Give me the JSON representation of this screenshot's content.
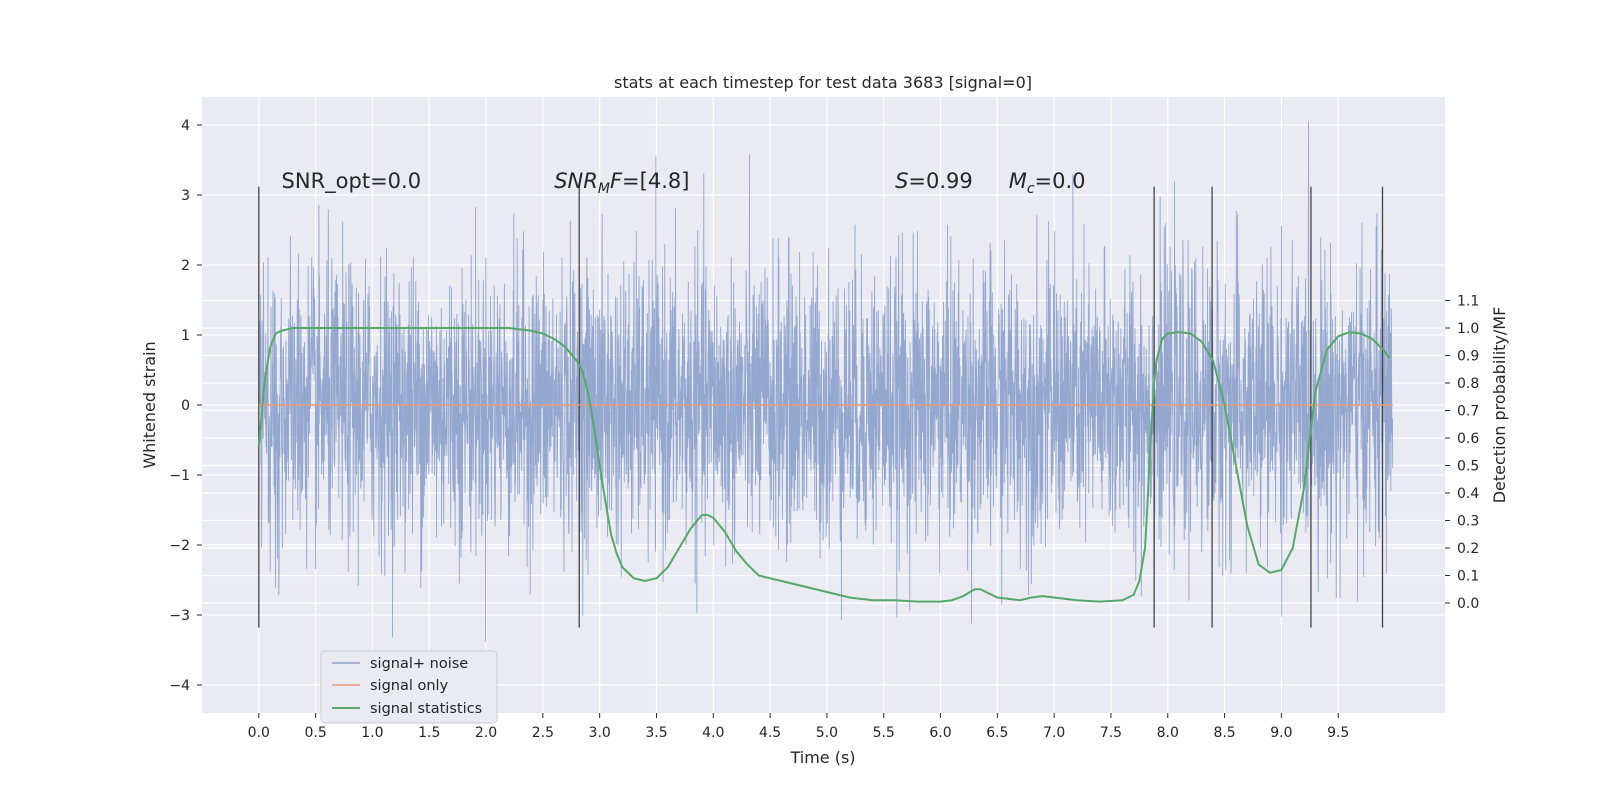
{
  "chart_data": {
    "type": "line",
    "title": "stats at each timestep for test data 3683 [signal=0]",
    "xlabel": "Time (s)",
    "ylabel": "Whitened strain",
    "ylabel_right": "Detection probability/MF",
    "xlim": [
      -0.5,
      10.44
    ],
    "ylim": [
      -4.4,
      4.4
    ],
    "ylim_right": [
      -0.4,
      1.84
    ],
    "x_ticks": [
      "0.0",
      "0.5",
      "1.0",
      "1.5",
      "2.0",
      "2.5",
      "3.0",
      "3.5",
      "4.0",
      "4.5",
      "5.0",
      "5.5",
      "6.0",
      "6.5",
      "7.0",
      "7.5",
      "8.0",
      "8.5",
      "9.0",
      "9.5"
    ],
    "y_ticks": [
      "4",
      "3",
      "2",
      "1",
      "0",
      "−1",
      "−2",
      "−3",
      "−4"
    ],
    "y_ticks_right": [
      "0.0",
      "0.1",
      "0.2",
      "0.3",
      "0.4",
      "0.5",
      "0.6",
      "0.7",
      "0.8",
      "0.9",
      "1.0",
      "1.1"
    ],
    "grid": true,
    "legend_position": "lower-left",
    "series": [
      {
        "name": "signal+ noise",
        "color": "#8fa3cc",
        "axis": "left",
        "x_range": [
          0.0,
          9.98
        ],
        "description": "dense whitened strain noise, mostly within ±2, peaks near ±4"
      },
      {
        "name": "signal only",
        "color": "#e9997a",
        "axis": "left",
        "x": [
          0.0,
          9.98
        ],
        "y": [
          0.0,
          0.0
        ]
      },
      {
        "name": "signal statistics",
        "color": "#55a868",
        "axis": "right",
        "x": [
          0.0,
          0.05,
          0.1,
          0.15,
          0.2,
          0.3,
          0.5,
          1.0,
          1.5,
          2.0,
          2.2,
          2.4,
          2.5,
          2.6,
          2.7,
          2.8,
          2.85,
          2.9,
          2.95,
          3.0,
          3.05,
          3.1,
          3.15,
          3.2,
          3.3,
          3.4,
          3.5,
          3.6,
          3.7,
          3.8,
          3.9,
          3.95,
          4.0,
          4.1,
          4.2,
          4.3,
          4.4,
          4.6,
          4.8,
          5.0,
          5.2,
          5.4,
          5.6,
          5.8,
          6.0,
          6.1,
          6.2,
          6.3,
          6.35,
          6.4,
          6.5,
          6.6,
          6.7,
          6.8,
          6.9,
          7.0,
          7.2,
          7.4,
          7.6,
          7.7,
          7.75,
          7.8,
          7.82,
          7.85,
          7.88,
          7.9,
          7.95,
          8.0,
          8.1,
          8.2,
          8.3,
          8.4,
          8.5,
          8.6,
          8.7,
          8.8,
          8.9,
          9.0,
          9.1,
          9.2,
          9.25,
          9.3,
          9.4,
          9.5,
          9.6,
          9.7,
          9.8,
          9.9,
          9.95
        ],
        "y": [
          0.57,
          0.8,
          0.93,
          0.98,
          0.99,
          1.0,
          1.0,
          1.0,
          1.0,
          1.0,
          1.0,
          0.99,
          0.98,
          0.96,
          0.93,
          0.88,
          0.84,
          0.76,
          0.64,
          0.5,
          0.37,
          0.25,
          0.18,
          0.13,
          0.09,
          0.08,
          0.09,
          0.13,
          0.2,
          0.27,
          0.32,
          0.32,
          0.31,
          0.26,
          0.19,
          0.14,
          0.1,
          0.08,
          0.06,
          0.04,
          0.02,
          0.01,
          0.01,
          0.005,
          0.005,
          0.01,
          0.025,
          0.05,
          0.05,
          0.04,
          0.02,
          0.015,
          0.01,
          0.02,
          0.025,
          0.02,
          0.01,
          0.005,
          0.01,
          0.03,
          0.08,
          0.2,
          0.35,
          0.6,
          0.8,
          0.88,
          0.96,
          0.98,
          0.985,
          0.98,
          0.95,
          0.88,
          0.72,
          0.5,
          0.28,
          0.14,
          0.11,
          0.12,
          0.2,
          0.42,
          0.6,
          0.77,
          0.92,
          0.97,
          0.985,
          0.98,
          0.96,
          0.92,
          0.89
        ]
      }
    ],
    "vertical_markers_x": [
      0.0,
      2.82,
      7.88,
      8.39,
      9.26,
      9.89
    ],
    "annotations": [
      {
        "type": "plain",
        "text": "SNR_opt=0.0",
        "x": 0.2,
        "y": 3.1
      },
      {
        "type": "snr_mf",
        "base": "SNR",
        "sub": "M",
        "rest": "F=[4.8]",
        "x": 2.6,
        "y": 3.1
      },
      {
        "type": "italic",
        "base": "S",
        "rest": "=0.99",
        "x": 5.6,
        "y": 3.1
      },
      {
        "type": "mc",
        "base": "M",
        "sub": "c",
        "rest": "=0.0",
        "x": 6.6,
        "y": 3.1
      }
    ]
  }
}
